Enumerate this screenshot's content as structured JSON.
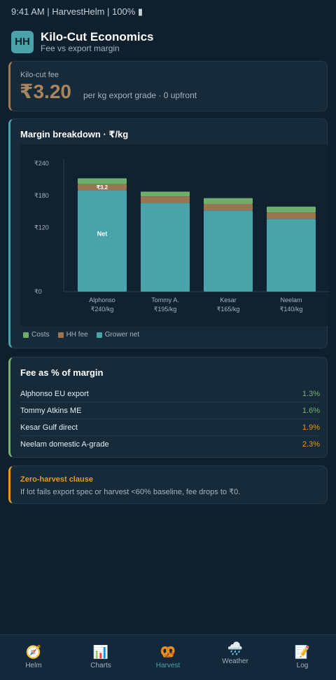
{
  "status_bar": {
    "text": "9:41 AM | HarvestHelm | 100% ▮"
  },
  "header": {
    "logo": "HH",
    "title": "Kilo-Cut Economics",
    "subtitle": "Fee vs export margin"
  },
  "fee_card": {
    "label": "Kilo-cut fee",
    "value": "₹3.20",
    "note": "per kg export grade · 0 upfront"
  },
  "margin_card": {
    "title": "Margin breakdown · ₹/kg",
    "legend": [
      {
        "label": "Costs",
        "color": "#6fad6a"
      },
      {
        "label": "HH fee",
        "color": "#9a7650"
      },
      {
        "label": "Grower net",
        "color": "#4aa3a8"
      }
    ]
  },
  "chart_data": {
    "type": "bar",
    "stacked": true,
    "categories": [
      "Alphonso",
      "Tommy A.",
      "Kesar",
      "Neelam"
    ],
    "category_sublabels": [
      "₹240/kg",
      "₹195/kg",
      "₹165/kg",
      "₹140/kg"
    ],
    "yticks": [
      "₹240",
      "₹180",
      "₹120",
      "₹0"
    ],
    "ylim": [
      0,
      240
    ],
    "series": [
      {
        "name": "Grower net",
        "color": "#4aa3a8",
        "values": [
          190,
          166,
          152,
          136
        ]
      },
      {
        "name": "HH fee",
        "color": "#9a7650",
        "values": [
          11,
          12,
          12,
          12
        ]
      },
      {
        "name": "Costs",
        "color": "#6fad6a",
        "values": [
          11,
          9,
          11,
          11
        ]
      }
    ],
    "annotations": {
      "fee_label": "₹3.2",
      "net_label": "Net"
    }
  },
  "pct_card": {
    "title": "Fee as % of margin",
    "rows": [
      {
        "label": "Alphonso EU export",
        "value": "1.3%",
        "color": "#7bb06e"
      },
      {
        "label": "Tommy Atkins ME",
        "value": "1.6%",
        "color": "#7bb06e"
      },
      {
        "label": "Kesar Gulf direct",
        "value": "1.9%",
        "color": "#e59a1e"
      },
      {
        "label": "Neelam domestic A-grade",
        "value": "2.3%",
        "color": "#e59a1e"
      }
    ]
  },
  "clause_card": {
    "title": "Zero-harvest clause",
    "text": "If lot fails export spec or harvest <60% baseline, fee drops to ₹0."
  },
  "nav": {
    "items": [
      {
        "label": "Helm",
        "icon": "🧭",
        "active": false
      },
      {
        "label": "Charts",
        "icon": "📊",
        "active": false
      },
      {
        "label": "Harvest",
        "icon": "🥨",
        "active": true
      },
      {
        "label": "Weather",
        "icon": "🌧️",
        "active": false
      },
      {
        "label": "Log",
        "icon": "📝",
        "active": false
      }
    ]
  }
}
